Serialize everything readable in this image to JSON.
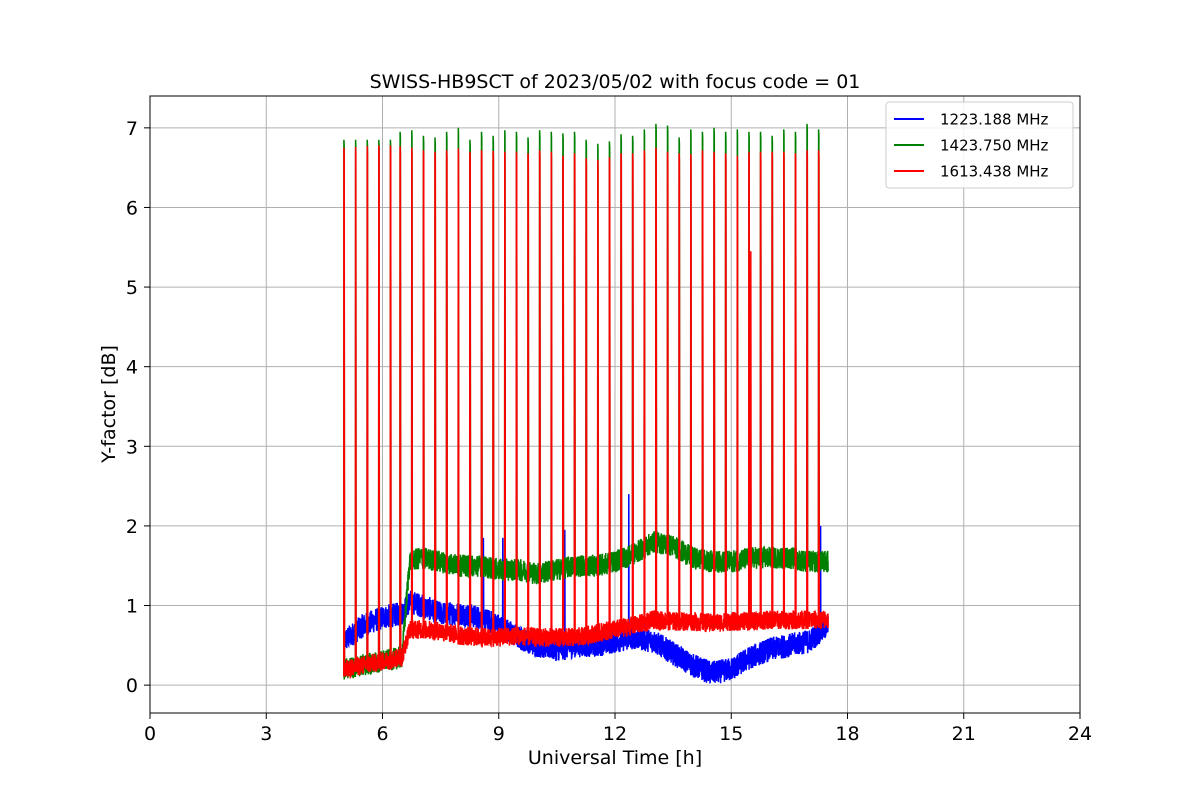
{
  "chart_data": {
    "type": "line",
    "title": "SWISS-HB9SCT of 2023/05/02 with focus code = 01",
    "xlabel": "Universal Time [h]",
    "ylabel": "Y-factor [dB]",
    "xlim": [
      0,
      24
    ],
    "ylim": [
      -0.35,
      7.4
    ],
    "xticks": [
      0,
      3,
      6,
      9,
      12,
      15,
      18,
      21,
      24
    ],
    "yticks": [
      0,
      1,
      2,
      3,
      4,
      5,
      6,
      7
    ],
    "grid": true,
    "legend_position": "top-right",
    "series": [
      {
        "name": "1223.188 MHz",
        "color": "#0000ff",
        "x": [
          5.0,
          5.5,
          6.0,
          6.5,
          6.7,
          7.0,
          7.5,
          8.0,
          8.5,
          9.0,
          9.5,
          10.0,
          10.5,
          11.0,
          11.5,
          12.0,
          12.5,
          13.0,
          13.5,
          14.0,
          14.5,
          15.0,
          15.5,
          16.0,
          16.5,
          17.0,
          17.5
        ],
        "y": [
          0.55,
          0.75,
          0.85,
          0.9,
          1.05,
          1.0,
          0.9,
          0.9,
          0.85,
          0.75,
          0.6,
          0.5,
          0.45,
          0.5,
          0.5,
          0.55,
          0.6,
          0.55,
          0.4,
          0.25,
          0.15,
          0.2,
          0.35,
          0.45,
          0.5,
          0.55,
          0.75
        ],
        "noise": 0.15
      },
      {
        "name": "1423.750 MHz",
        "color": "#008000",
        "x": [
          5.0,
          5.5,
          6.0,
          6.5,
          6.7,
          7.0,
          7.5,
          8.0,
          8.5,
          9.0,
          9.5,
          10.0,
          10.5,
          11.0,
          11.5,
          12.0,
          12.5,
          13.0,
          13.5,
          14.0,
          14.5,
          15.0,
          15.5,
          16.0,
          16.5,
          17.0,
          17.5
        ],
        "y": [
          0.2,
          0.25,
          0.3,
          0.35,
          1.55,
          1.6,
          1.55,
          1.5,
          1.5,
          1.45,
          1.45,
          1.4,
          1.45,
          1.5,
          1.5,
          1.55,
          1.65,
          1.8,
          1.75,
          1.6,
          1.55,
          1.55,
          1.6,
          1.6,
          1.6,
          1.55,
          1.55
        ],
        "noise": 0.14
      },
      {
        "name": "1613.438 MHz",
        "color": "#ff0000",
        "x": [
          5.0,
          5.5,
          6.0,
          6.5,
          6.7,
          7.0,
          7.5,
          8.0,
          8.5,
          9.0,
          9.5,
          10.0,
          10.5,
          11.0,
          11.5,
          12.0,
          12.5,
          13.0,
          13.5,
          14.0,
          14.5,
          15.0,
          15.5,
          16.0,
          16.5,
          17.0,
          17.5
        ],
        "y": [
          0.2,
          0.25,
          0.3,
          0.35,
          0.7,
          0.7,
          0.68,
          0.62,
          0.6,
          0.6,
          0.62,
          0.6,
          0.6,
          0.6,
          0.65,
          0.7,
          0.75,
          0.82,
          0.8,
          0.8,
          0.78,
          0.8,
          0.8,
          0.82,
          0.82,
          0.82,
          0.82
        ],
        "noise": 0.12
      }
    ],
    "calibration_spikes": {
      "times": [
        5.0,
        5.3,
        5.6,
        5.9,
        6.2,
        6.45,
        6.75,
        7.05,
        7.35,
        7.65,
        7.95,
        8.25,
        8.55,
        8.85,
        9.15,
        9.45,
        9.75,
        10.05,
        10.35,
        10.65,
        10.95,
        11.25,
        11.55,
        11.85,
        12.15,
        12.45,
        12.75,
        13.05,
        13.35,
        13.65,
        13.95,
        14.25,
        14.55,
        14.85,
        15.15,
        15.45,
        15.75,
        16.05,
        16.35,
        16.65,
        16.95,
        17.25
      ],
      "green_peaks": [
        6.85,
        6.85,
        6.85,
        6.85,
        6.85,
        6.95,
        6.97,
        6.9,
        6.88,
        6.95,
        7.0,
        6.85,
        6.95,
        6.9,
        6.97,
        6.95,
        6.88,
        6.97,
        6.95,
        6.93,
        6.95,
        6.85,
        6.8,
        6.83,
        6.92,
        6.9,
        6.98,
        7.05,
        7.03,
        6.88,
        6.98,
        6.95,
        7.0,
        6.95,
        6.98,
        6.95,
        6.95,
        6.9,
        6.98,
        6.95,
        7.05,
        6.98
      ],
      "red_peaks": [
        6.75,
        6.76,
        6.77,
        6.78,
        6.78,
        6.77,
        6.75,
        6.72,
        6.7,
        6.72,
        6.74,
        6.7,
        6.72,
        6.71,
        6.7,
        6.7,
        6.68,
        6.72,
        6.7,
        6.65,
        6.68,
        6.62,
        6.6,
        6.63,
        6.68,
        6.68,
        6.72,
        6.75,
        6.7,
        6.68,
        6.67,
        6.72,
        6.7,
        6.68,
        6.65,
        6.7,
        6.7,
        6.7,
        6.7,
        6.68,
        6.72,
        6.72
      ]
    },
    "blue_spikes": [
      {
        "x": 8.6,
        "y": 1.85
      },
      {
        "x": 9.1,
        "y": 1.85
      },
      {
        "x": 10.7,
        "y": 1.95
      },
      {
        "x": 12.35,
        "y": 2.4
      },
      {
        "x": 17.3,
        "y": 2.0
      }
    ],
    "red_extra_spike": {
      "x": 15.5,
      "y": 5.45
    }
  }
}
